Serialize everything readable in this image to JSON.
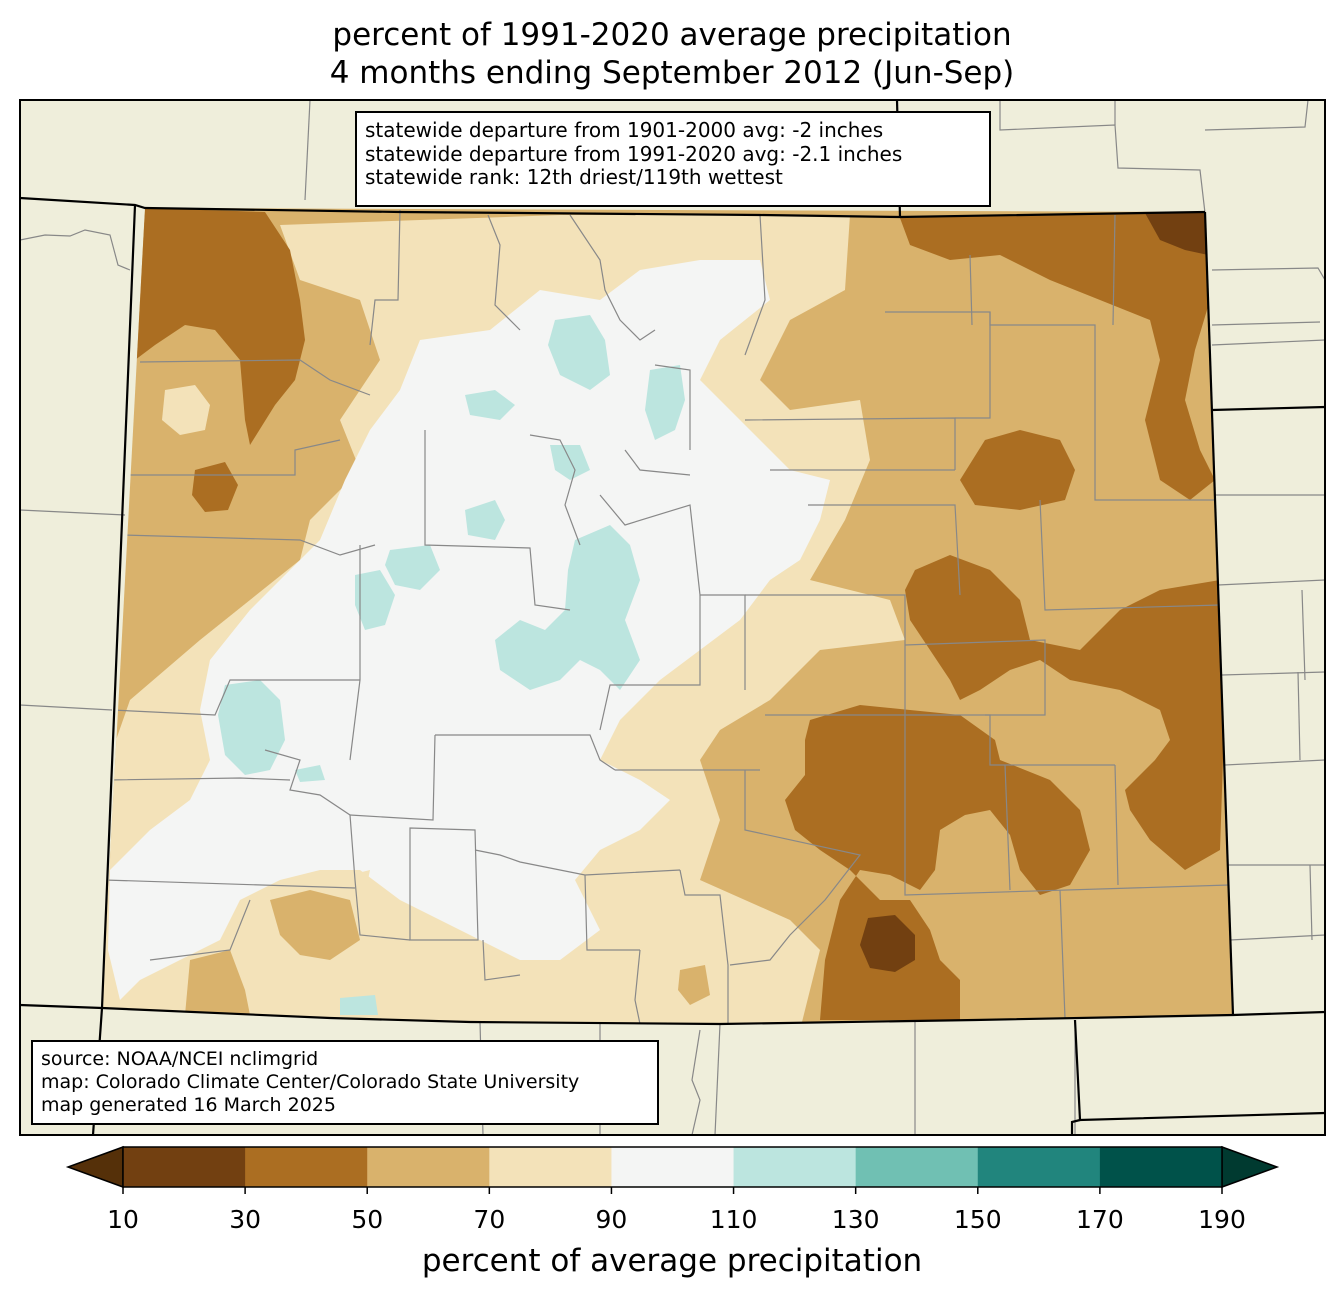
{
  "title": {
    "line1": "percent of 1991-2020 average precipitation",
    "line2": "4 months ending September 2012 (Jun-Sep)"
  },
  "stats": {
    "line1": "statewide departure from 1901-2000 avg: -2 inches",
    "line2": "statewide departure from 1991-2020 avg: -2.1 inches",
    "line3": "statewide rank: 12th driest/119th wettest"
  },
  "credits": {
    "line1": "source: NOAA/NCEI nclimgrid",
    "line2": "map: Colorado Climate Center/Colorado State University",
    "line3": "map generated 16 March 2025"
  },
  "colorbar": {
    "label": "percent of average precipitation",
    "ticks": [
      "10",
      "30",
      "50",
      "70",
      "90",
      "110",
      "130",
      "150",
      "170",
      "190"
    ],
    "bins": [
      {
        "range": [
          10,
          30
        ],
        "color": "#724011"
      },
      {
        "range": [
          30,
          50
        ],
        "color": "#ab6e22"
      },
      {
        "range": [
          50,
          70
        ],
        "color": "#d9b26c"
      },
      {
        "range": [
          70,
          90
        ],
        "color": "#f3e2b9"
      },
      {
        "range": [
          90,
          110
        ],
        "color": "#f4f5f4"
      },
      {
        "range": [
          110,
          130
        ],
        "color": "#bce5df"
      },
      {
        "range": [
          130,
          150
        ],
        "color": "#70c0b3"
      },
      {
        "range": [
          150,
          170
        ],
        "color": "#21857d"
      },
      {
        "range": [
          170,
          190
        ],
        "color": "#00524a"
      }
    ],
    "under_color": "#553009",
    "over_color": "#003a30"
  },
  "colors": {
    "land": "#efeedb",
    "county_lines": "#888888",
    "state_lines": "#000000"
  }
}
